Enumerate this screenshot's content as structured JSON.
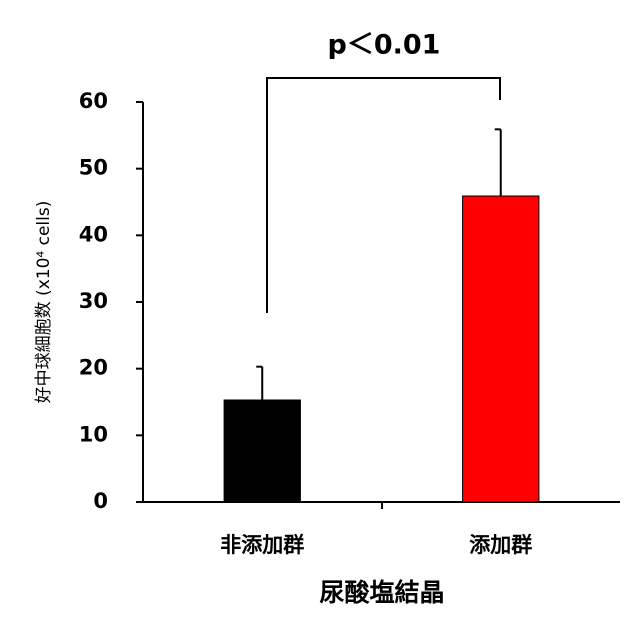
{
  "chart_data": {
    "type": "bar",
    "annotation": "p＜0.01",
    "x_label": "尿酸塩結晶",
    "y_label": "好中球細胞数 (x10⁴ cells)",
    "categories": [
      "非添加群",
      "添加群"
    ],
    "values": [
      15.3,
      45.9
    ],
    "errors": [
      5,
      10
    ],
    "colors": [
      "#000000",
      "#ff0000"
    ],
    "ylim": [
      0,
      60
    ],
    "yticks": [
      0,
      10,
      20,
      30,
      40,
      50,
      60
    ],
    "grid": false
  }
}
